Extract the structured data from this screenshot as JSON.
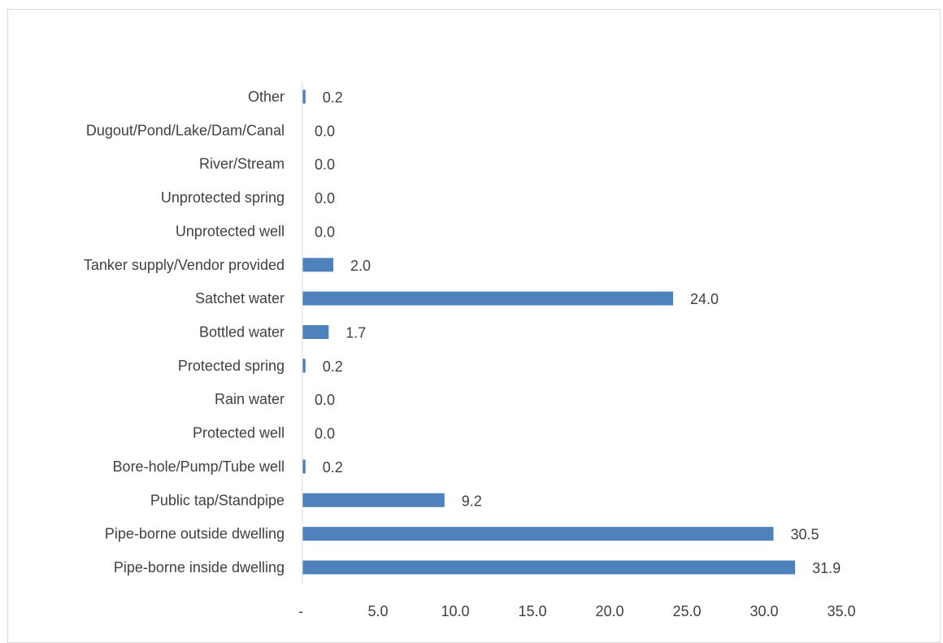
{
  "chart_data": {
    "type": "bar",
    "orientation": "horizontal",
    "categories": [
      "Pipe-borne inside dwelling",
      "Pipe-borne outside dwelling",
      "Public tap/Standpipe",
      "Bore-hole/Pump/Tube well",
      "Protected well",
      "Rain water",
      "Protected spring",
      "Bottled water",
      "Satchet water",
      "Tanker supply/Vendor provided",
      "Unprotected well",
      "Unprotected spring",
      "River/Stream",
      "Dugout/Pond/Lake/Dam/Canal",
      "Other"
    ],
    "values": [
      31.9,
      30.5,
      9.2,
      0.2,
      0.0,
      0.0,
      0.2,
      1.7,
      24.0,
      2.0,
      0.0,
      0.0,
      0.0,
      0.0,
      0.2
    ],
    "value_labels": [
      "31.9",
      "30.5",
      "9.2",
      "0.2",
      "0.0",
      "0.0",
      "0.2",
      "1.7",
      "24.0",
      "2.0",
      "0.0",
      "0.0",
      "0.0",
      "0.0",
      "0.2"
    ],
    "xlim": [
      0,
      35
    ],
    "xticks": [
      0,
      5,
      10,
      15,
      20,
      25,
      30,
      35
    ],
    "xtick_labels": [
      "-",
      "5.0",
      "10.0",
      "15.0",
      "20.0",
      "25.0",
      "30.0",
      "35.0"
    ],
    "title": "",
    "xlabel": "",
    "ylabel": "",
    "grid": false,
    "legend": "none",
    "bar_color": "#4f81bd",
    "text_color": "#404040",
    "axis_color": "#d9d9d9"
  }
}
